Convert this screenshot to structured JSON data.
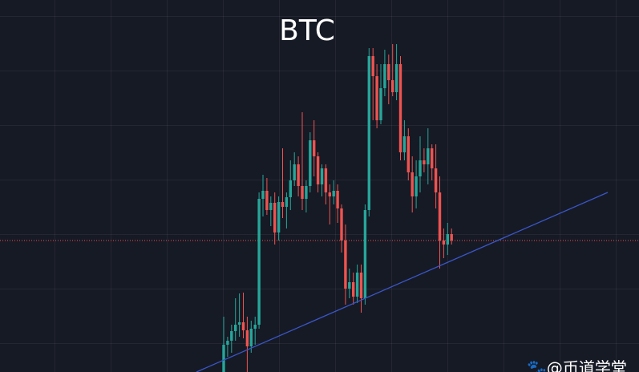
{
  "chart_data": {
    "type": "candlestick",
    "title": "BTC",
    "watermark": "@币道学堂",
    "ylim": [
      0,
      464
    ],
    "colors": {
      "up": "#26a69a",
      "down": "#ef5350",
      "price_line": "#ef5350"
    },
    "price_line": 164,
    "open": [
      0,
      34,
      39,
      51,
      59,
      62,
      52,
      32,
      54,
      59,
      216,
      226,
      202,
      211,
      174,
      212,
      206,
      218,
      239,
      259,
      232,
      216,
      232,
      289,
      269,
      234,
      254,
      224,
      219,
      226,
      204,
      164,
      104,
      112,
      94,
      124,
      92,
      202,
      394,
      369,
      314,
      354,
      384,
      364,
      349,
      384,
      274,
      294,
      249,
      219,
      244,
      264,
      259,
      279,
      254,
      224,
      164,
      159,
      172
    ],
    "high": [
      69,
      44,
      59,
      92,
      98,
      99,
      69,
      64,
      69,
      224,
      246,
      242,
      219,
      224,
      219,
      279,
      224,
      264,
      274,
      269,
      324,
      239,
      299,
      314,
      274,
      259,
      259,
      234,
      239,
      234,
      209,
      184,
      129,
      124,
      134,
      134,
      209,
      404,
      404,
      384,
      384,
      402,
      396,
      409,
      409,
      394,
      314,
      304,
      269,
      264,
      294,
      279,
      304,
      284,
      284,
      244,
      179,
      186,
      179
    ],
    "low": [
      0,
      19,
      24,
      39,
      44,
      42,
      0,
      24,
      34,
      54,
      194,
      196,
      182,
      159,
      164,
      192,
      179,
      202,
      232,
      219,
      202,
      199,
      224,
      244,
      224,
      219,
      209,
      184,
      209,
      186,
      149,
      84,
      92,
      84,
      86,
      74,
      84,
      194,
      314,
      304,
      309,
      344,
      334,
      344,
      339,
      264,
      264,
      239,
      199,
      204,
      224,
      249,
      234,
      239,
      204,
      129,
      142,
      146,
      159
    ],
    "close": [
      34,
      39,
      51,
      59,
      62,
      52,
      32,
      54,
      59,
      216,
      226,
      202,
      211,
      174,
      212,
      206,
      218,
      239,
      259,
      232,
      216,
      232,
      289,
      269,
      234,
      254,
      224,
      219,
      226,
      204,
      164,
      104,
      112,
      94,
      124,
      92,
      202,
      394,
      369,
      314,
      354,
      384,
      364,
      349,
      384,
      274,
      294,
      249,
      219,
      244,
      264,
      259,
      279,
      254,
      224,
      164,
      159,
      172,
      164
    ]
  }
}
